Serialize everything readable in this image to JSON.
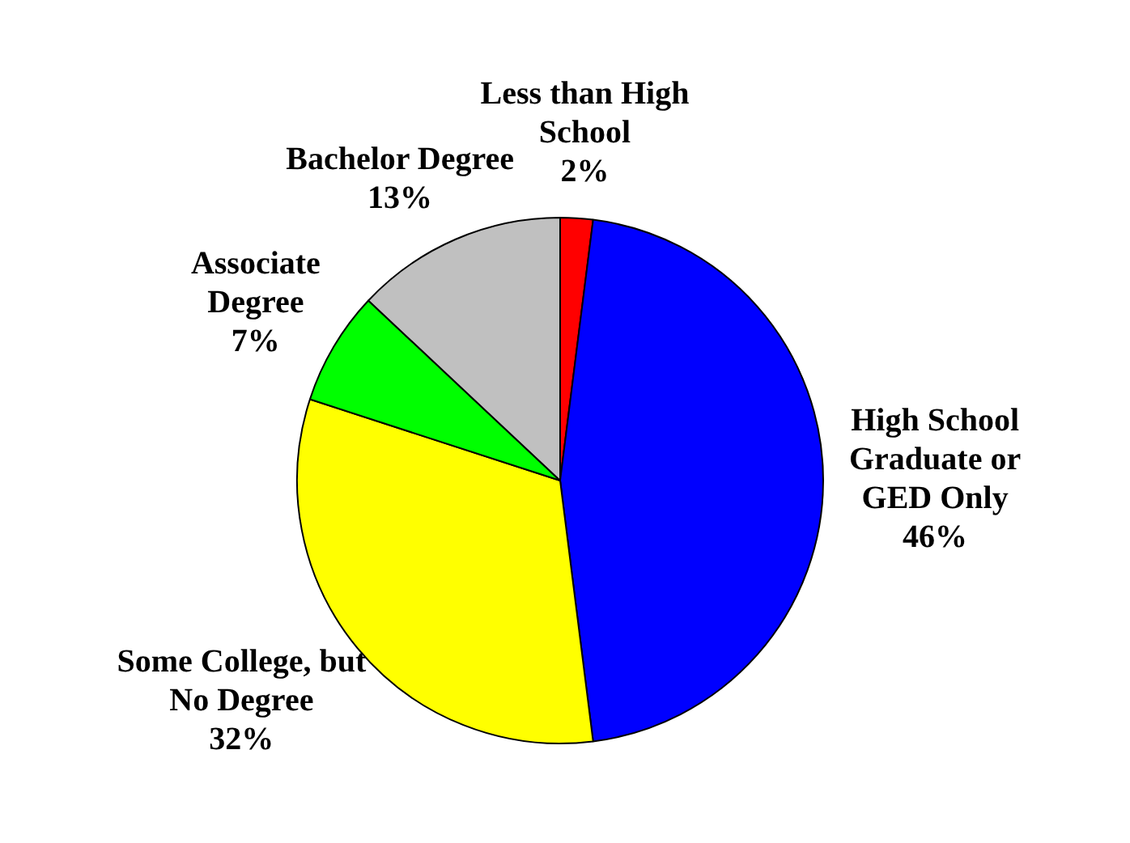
{
  "chart_data": {
    "type": "pie",
    "categories": [
      "Less than High School",
      "High School Graduate or GED Only",
      "Some College, but No Degree",
      "Associate Degree",
      "Bachelor Degree"
    ],
    "values": [
      2,
      46,
      32,
      7,
      13
    ],
    "value_labels": [
      "2%",
      "46%",
      "32%",
      "7%",
      "13%"
    ],
    "colors": [
      "#ff0000",
      "#0000ff",
      "#ffff00",
      "#00ff00",
      "#c0c0c0"
    ],
    "legend": false
  }
}
